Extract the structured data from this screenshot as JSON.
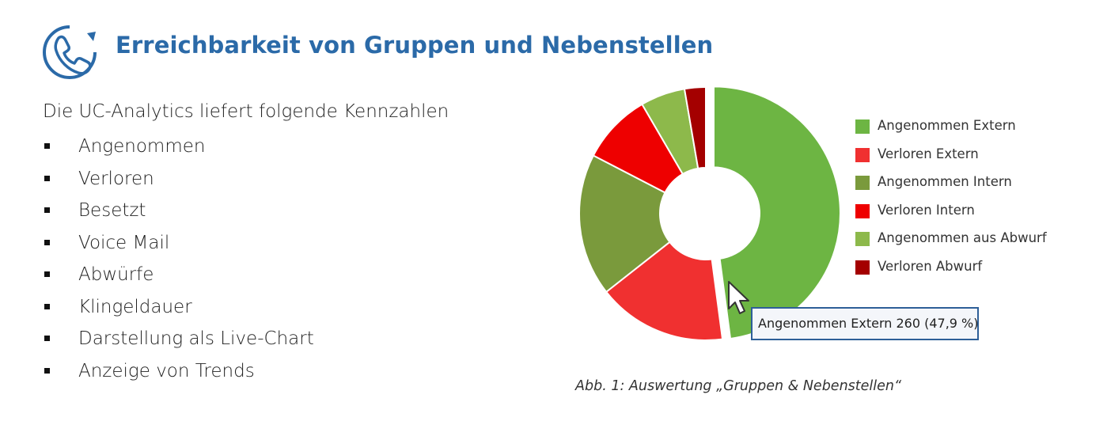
{
  "header": {
    "icon": "phone-refresh-icon",
    "title": "Erreichbarkeit von Gruppen und Nebenstellen",
    "accent": "#2b6aa8"
  },
  "intro": "Die UC-Analytics liefert folgende Kennzahlen",
  "kpis": [
    "Angenommen",
    "Verloren",
    "Besetzt",
    "Voice Mail",
    "Abwürfe",
    "Klingeldauer",
    "Darstellung als Live-Chart",
    "Anzeige von Trends"
  ],
  "chart_data": {
    "type": "pie",
    "variant": "donut",
    "exploded_slice": "Angenommen Extern",
    "legend_position": "right",
    "series": [
      {
        "name": "Angenommen Extern",
        "value": 47.9,
        "color": "#6db543"
      },
      {
        "name": "Verloren Extern",
        "value": 16.5,
        "color": "#f03030"
      },
      {
        "name": "Angenommen Intern",
        "value": 18.2,
        "color": "#7a9a3c"
      },
      {
        "name": "Verloren Intern",
        "value": 9.0,
        "color": "#ee0000"
      },
      {
        "name": "Angenommen aus Abwurf",
        "value": 5.7,
        "color": "#8db94b"
      },
      {
        "name": "Verloren Abwurf",
        "value": 2.7,
        "color": "#a40000"
      }
    ],
    "tooltip": {
      "series": "Angenommen Extern",
      "count": 260,
      "text": "Angenommen Extern 260 (47,9 %)"
    }
  },
  "caption": "Abb. 1: Auswertung „Gruppen & Nebenstellen“"
}
